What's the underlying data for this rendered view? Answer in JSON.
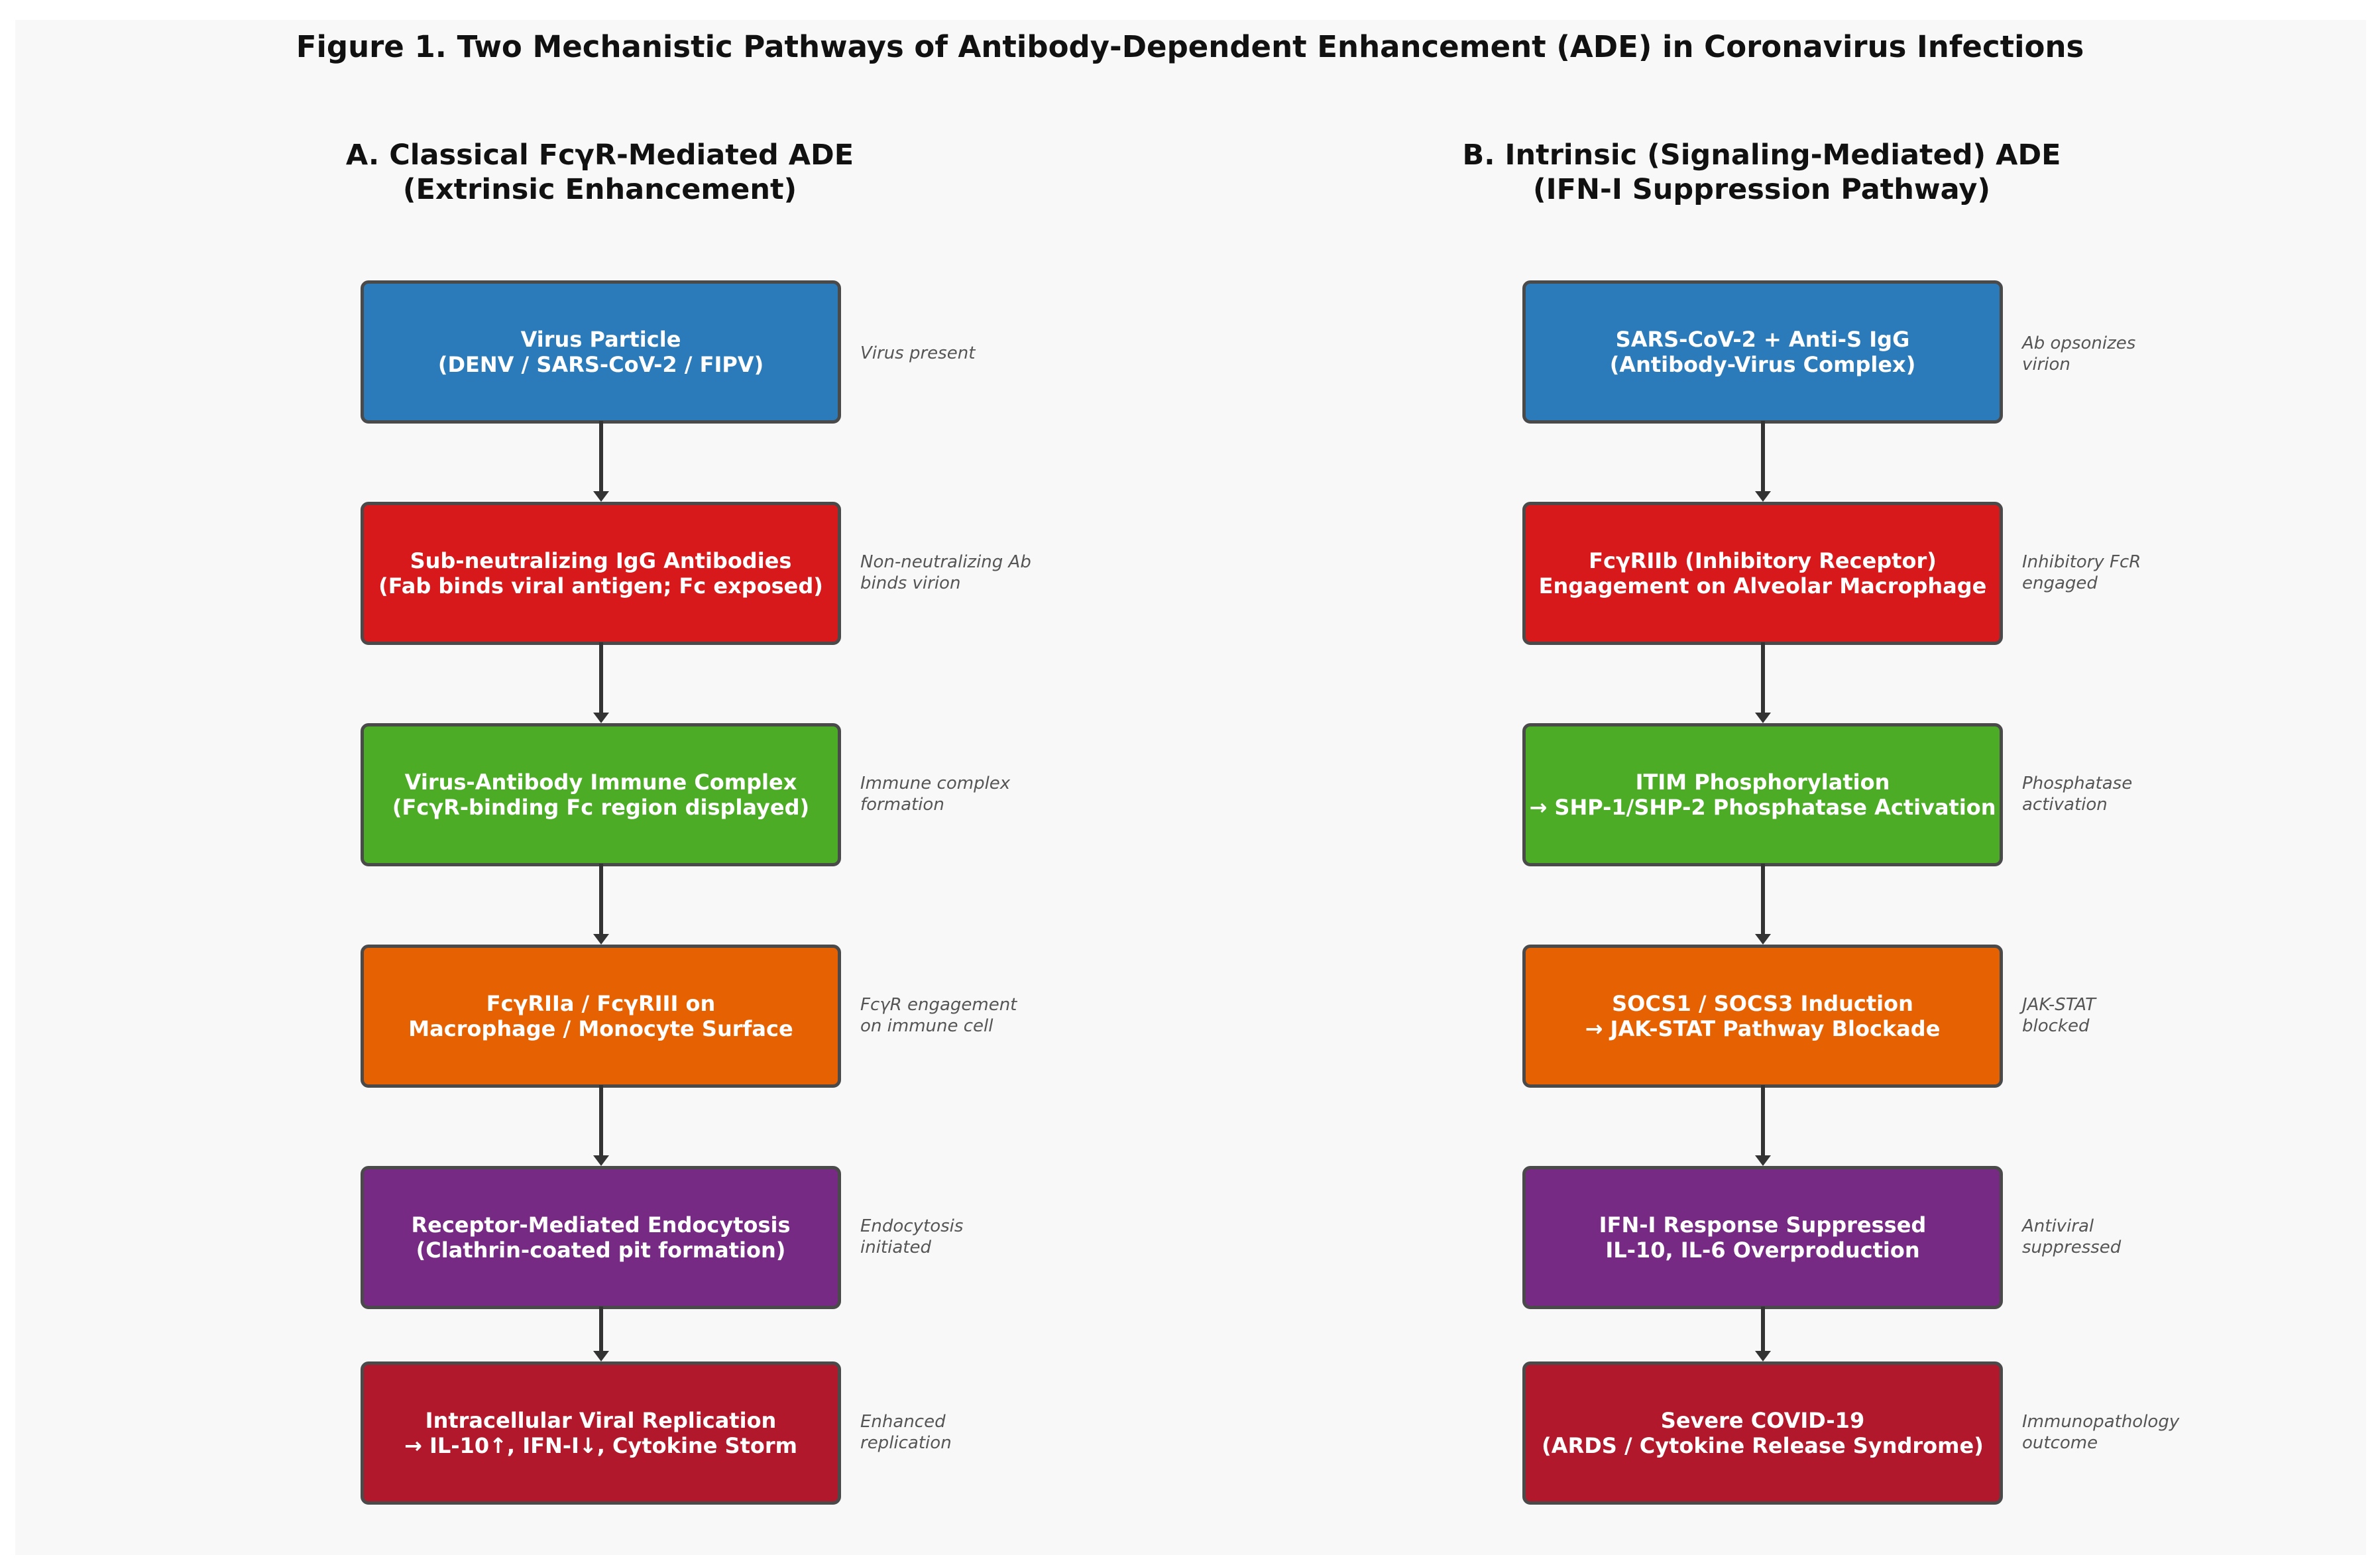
{
  "figure_title": "Figure 1. Two Mechanistic Pathways of Antibody-Dependent Enhancement (ADE) in Coronavirus Infections",
  "colors": {
    "step1": "#2b7bba",
    "step2": "#d7191c",
    "step3": "#4dac26",
    "step4": "#e66101",
    "step5": "#762a83",
    "step6": "#b2182b",
    "border": "#4a4a4a",
    "arrow": "#333333"
  },
  "panel_a": {
    "title_line1": "A. Classical FcγR-Mediated ADE",
    "title_line2": "(Extrinsic Enhancement)",
    "steps": [
      {
        "line1": "Virus Particle",
        "line2": "(DENV / SARS-CoV-2 / FIPV)",
        "note1": "Virus present",
        "note2": ""
      },
      {
        "line1": "Sub-neutralizing IgG Antibodies",
        "line2": "(Fab binds viral antigen; Fc exposed)",
        "note1": "Non-neutralizing Ab",
        "note2": "binds virion"
      },
      {
        "line1": "Virus-Antibody Immune Complex",
        "line2": "(FcγR-binding Fc region displayed)",
        "note1": "Immune complex",
        "note2": "formation"
      },
      {
        "line1": "FcγRIIa / FcγRIII on",
        "line2": "Macrophage / Monocyte Surface",
        "note1": "FcγR engagement",
        "note2": "on immune cell"
      },
      {
        "line1": "Receptor-Mediated Endocytosis",
        "line2": "(Clathrin-coated pit formation)",
        "note1": "Endocytosis",
        "note2": "initiated"
      },
      {
        "line1": "Intracellular Viral Replication",
        "line2": "→ IL-10↑, IFN-I↓, Cytokine Storm",
        "note1": "Enhanced",
        "note2": "replication"
      }
    ]
  },
  "panel_b": {
    "title_line1": "B. Intrinsic (Signaling-Mediated) ADE",
    "title_line2": "(IFN-I Suppression Pathway)",
    "steps": [
      {
        "line1": "SARS-CoV-2 + Anti-S IgG",
        "line2": "(Antibody-Virus Complex)",
        "note1": "Ab opsonizes",
        "note2": "virion"
      },
      {
        "line1": "FcγRIIb (Inhibitory Receptor)",
        "line2": "Engagement on Alveolar Macrophage",
        "note1": "Inhibitory FcR",
        "note2": "engaged"
      },
      {
        "line1": "ITIM Phosphorylation",
        "line2": "→ SHP-1/SHP-2 Phosphatase Activation",
        "note1": "Phosphatase",
        "note2": "activation"
      },
      {
        "line1": "SOCS1 / SOCS3 Induction",
        "line2": "→ JAK-STAT Pathway Blockade",
        "note1": "JAK-STAT",
        "note2": "blocked"
      },
      {
        "line1": "IFN-I Response Suppressed",
        "line2": "IL-10, IL-6 Overproduction",
        "note1": "Antiviral",
        "note2": "suppressed"
      },
      {
        "line1": "Severe COVID-19",
        "line2": "(ARDS / Cytokine Release Syndrome)",
        "note1": "Immunopathology",
        "note2": "outcome"
      }
    ]
  }
}
